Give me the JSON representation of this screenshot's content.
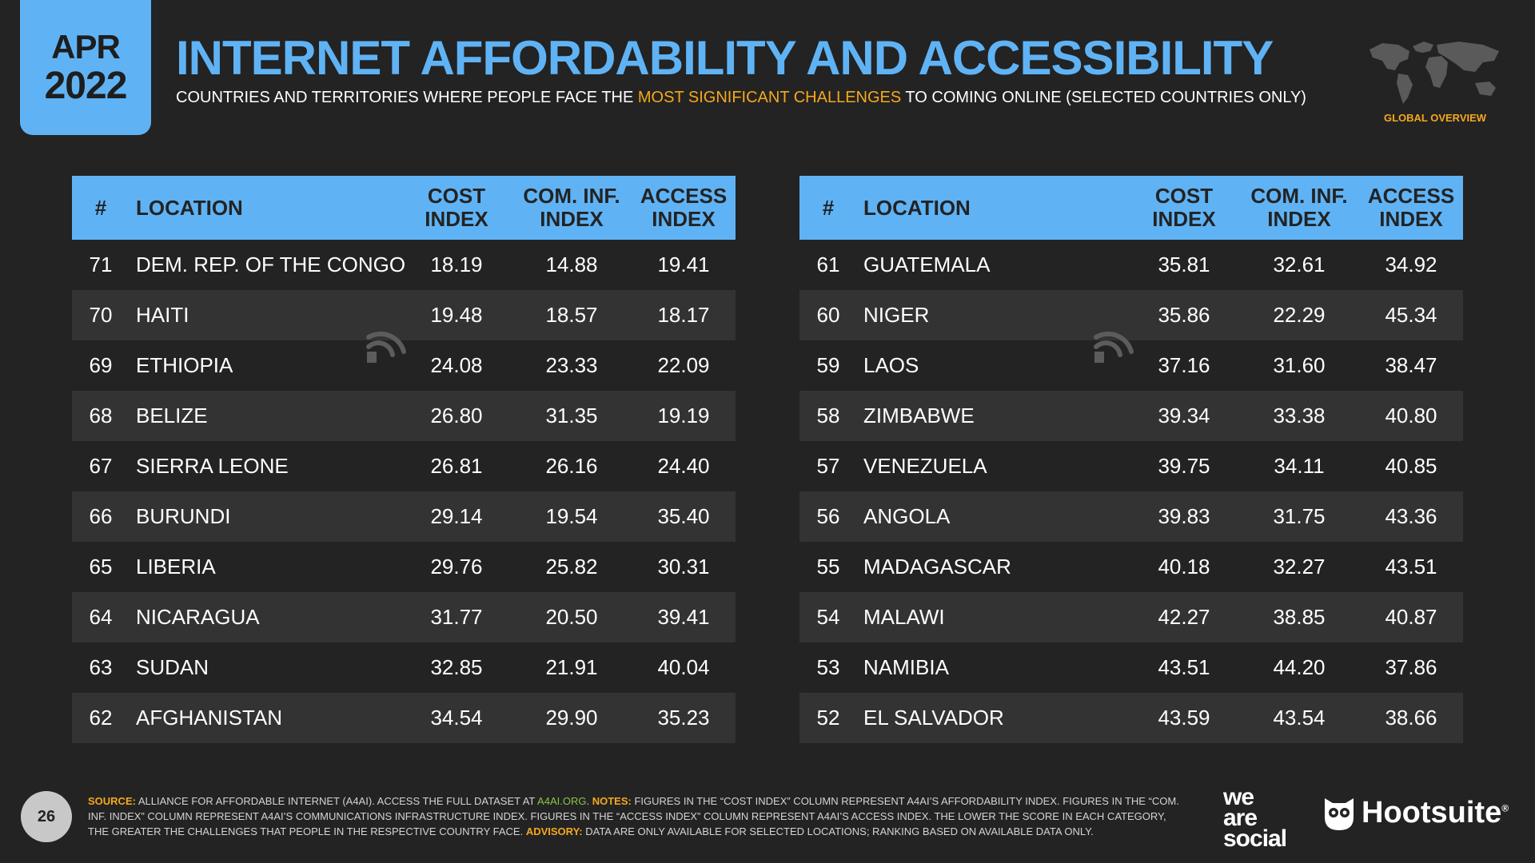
{
  "badge": {
    "month": "APR",
    "year": "2022"
  },
  "header": {
    "title": "INTERNET AFFORDABILITY AND ACCESSIBILITY",
    "subtitle_before": "COUNTRIES AND TERRITORIES WHERE PEOPLE FACE THE ",
    "subtitle_highlight": "MOST SIGNIFICANT CHALLENGES",
    "subtitle_after": " TO COMING ONLINE (SELECTED COUNTRIES ONLY)",
    "overview_label": "GLOBAL OVERVIEW"
  },
  "colors": {
    "accent": "#5fb3f5",
    "highlight": "#f5a81c",
    "background": "#232323",
    "row_alt": "#333333"
  },
  "columns": {
    "rank": "#",
    "location": "LOCATION",
    "cost_line1": "COST",
    "cost_line2": "INDEX",
    "com_line1": "COM. INF.",
    "com_line2": "INDEX",
    "access_line1": "ACCESS",
    "access_line2": "INDEX"
  },
  "left_table": [
    {
      "rank": "71",
      "location": "DEM. REP. OF THE CONGO",
      "cost": "18.19",
      "com": "14.88",
      "access": "19.41"
    },
    {
      "rank": "70",
      "location": "HAITI",
      "cost": "19.48",
      "com": "18.57",
      "access": "18.17"
    },
    {
      "rank": "69",
      "location": "ETHIOPIA",
      "cost": "24.08",
      "com": "23.33",
      "access": "22.09"
    },
    {
      "rank": "68",
      "location": "BELIZE",
      "cost": "26.80",
      "com": "31.35",
      "access": "19.19"
    },
    {
      "rank": "67",
      "location": "SIERRA LEONE",
      "cost": "26.81",
      "com": "26.16",
      "access": "24.40"
    },
    {
      "rank": "66",
      "location": "BURUNDI",
      "cost": "29.14",
      "com": "19.54",
      "access": "35.40"
    },
    {
      "rank": "65",
      "location": "LIBERIA",
      "cost": "29.76",
      "com": "25.82",
      "access": "30.31"
    },
    {
      "rank": "64",
      "location": "NICARAGUA",
      "cost": "31.77",
      "com": "20.50",
      "access": "39.41"
    },
    {
      "rank": "63",
      "location": "SUDAN",
      "cost": "32.85",
      "com": "21.91",
      "access": "40.04"
    },
    {
      "rank": "62",
      "location": "AFGHANISTAN",
      "cost": "34.54",
      "com": "29.90",
      "access": "35.23"
    }
  ],
  "right_table": [
    {
      "rank": "61",
      "location": "GUATEMALA",
      "cost": "35.81",
      "com": "32.61",
      "access": "34.92"
    },
    {
      "rank": "60",
      "location": "NIGER",
      "cost": "35.86",
      "com": "22.29",
      "access": "45.34"
    },
    {
      "rank": "59",
      "location": "LAOS",
      "cost": "37.16",
      "com": "31.60",
      "access": "38.47"
    },
    {
      "rank": "58",
      "location": "ZIMBABWE",
      "cost": "39.34",
      "com": "33.38",
      "access": "40.80"
    },
    {
      "rank": "57",
      "location": "VENEZUELA",
      "cost": "39.75",
      "com": "34.11",
      "access": "40.85"
    },
    {
      "rank": "56",
      "location": "ANGOLA",
      "cost": "39.83",
      "com": "31.75",
      "access": "43.36"
    },
    {
      "rank": "55",
      "location": "MADAGASCAR",
      "cost": "40.18",
      "com": "32.27",
      "access": "43.51"
    },
    {
      "rank": "54",
      "location": "MALAWI",
      "cost": "42.27",
      "com": "38.85",
      "access": "40.87"
    },
    {
      "rank": "53",
      "location": "NAMIBIA",
      "cost": "43.51",
      "com": "44.20",
      "access": "37.86"
    },
    {
      "rank": "52",
      "location": "EL SALVADOR",
      "cost": "43.59",
      "com": "43.54",
      "access": "38.66"
    }
  ],
  "footer": {
    "page_number": "26",
    "source_label": "SOURCE:",
    "source_text": " ALLIANCE FOR AFFORDABLE INTERNET (A4AI). ACCESS THE FULL DATASET AT ",
    "source_link": "A4AI.ORG",
    "source_end": ". ",
    "notes_label": "NOTES:",
    "notes_text": " FIGURES IN THE “COST INDEX” COLUMN REPRESENT A4AI’S AFFORDABILITY INDEX. FIGURES IN THE “COM. INF. INDEX” COLUMN REPRESENT A4AI’S COMMUNICATIONS INFRASTRUCTURE INDEX. FIGURES IN THE “ACCESS INDEX” COLUMN REPRESENT A4AI’S ACCESS INDEX. THE LOWER THE SCORE IN EACH CATEGORY, THE GREATER THE CHALLENGES THAT PEOPLE IN THE RESPECTIVE COUNTRY FACE. ",
    "advisory_label": "ADVISORY:",
    "advisory_text": " DATA ARE ONLY AVAILABLE FOR SELECTED LOCATIONS; RANKING BASED ON AVAILABLE DATA ONLY.",
    "was_line1": "we",
    "was_line2": "are",
    "was_line3": "social",
    "hootsuite": "Hootsuite",
    "hootsuite_mark": "®"
  }
}
